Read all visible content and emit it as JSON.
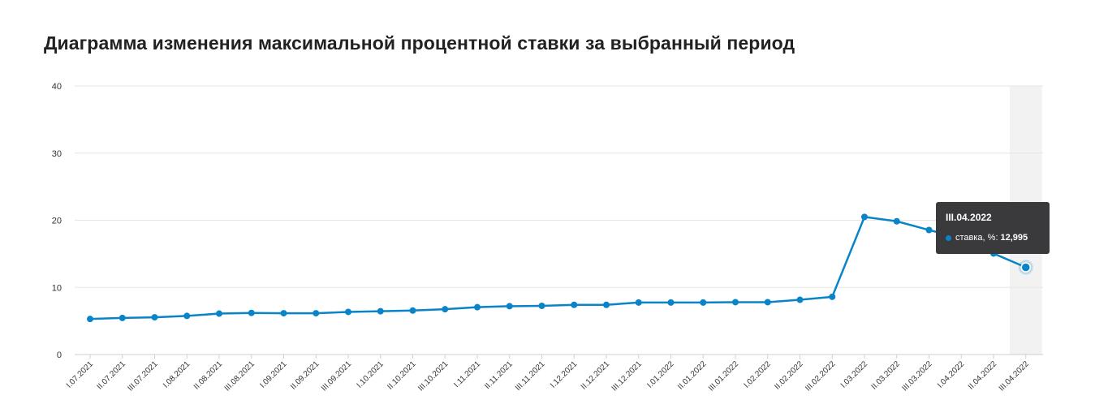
{
  "title": "Диаграмма изменения максимальной процентной ставки за выбранный период",
  "tooltip": {
    "title": "III.04.2022",
    "series_label": "ставка, %:",
    "value": "12,995"
  },
  "colors": {
    "line": "#0a84c8",
    "grid": "#e6e6e6",
    "highlight": "#f2f2f2"
  },
  "chart_data": {
    "type": "line",
    "categories": [
      "I.07.2021",
      "II.07.2021",
      "III.07.2021",
      "I.08.2021",
      "II.08.2021",
      "III.08.2021",
      "I.09.2021",
      "II.09.2021",
      "III.09.2021",
      "I.10.2021",
      "II.10.2021",
      "III.10.2021",
      "I.11.2021",
      "II.11.2021",
      "III.11.2021",
      "I.12.2021",
      "II.12.2021",
      "III.12.2021",
      "I.01.2022",
      "II.01.2022",
      "III.01.2022",
      "I.02.2022",
      "II.02.2022",
      "III.02.2022",
      "I.03.2022",
      "II.03.2022",
      "III.03.2022",
      "I.04.2022",
      "II.04.2022",
      "III.04.2022"
    ],
    "series": [
      {
        "name": "ставка, %",
        "values": [
          5.3,
          5.45,
          5.55,
          5.75,
          6.1,
          6.2,
          6.15,
          6.15,
          6.35,
          6.45,
          6.55,
          6.75,
          7.05,
          7.2,
          7.25,
          7.4,
          7.4,
          7.75,
          7.75,
          7.75,
          7.8,
          7.8,
          8.15,
          8.6,
          20.5,
          19.85,
          18.55,
          17.3,
          15.05,
          12.995
        ]
      }
    ],
    "ylim": [
      0,
      40
    ],
    "yticks": [
      "0",
      "10",
      "20",
      "30",
      "40"
    ],
    "highlighted_category": "III.04.2022",
    "grid": true,
    "legend": "none"
  }
}
